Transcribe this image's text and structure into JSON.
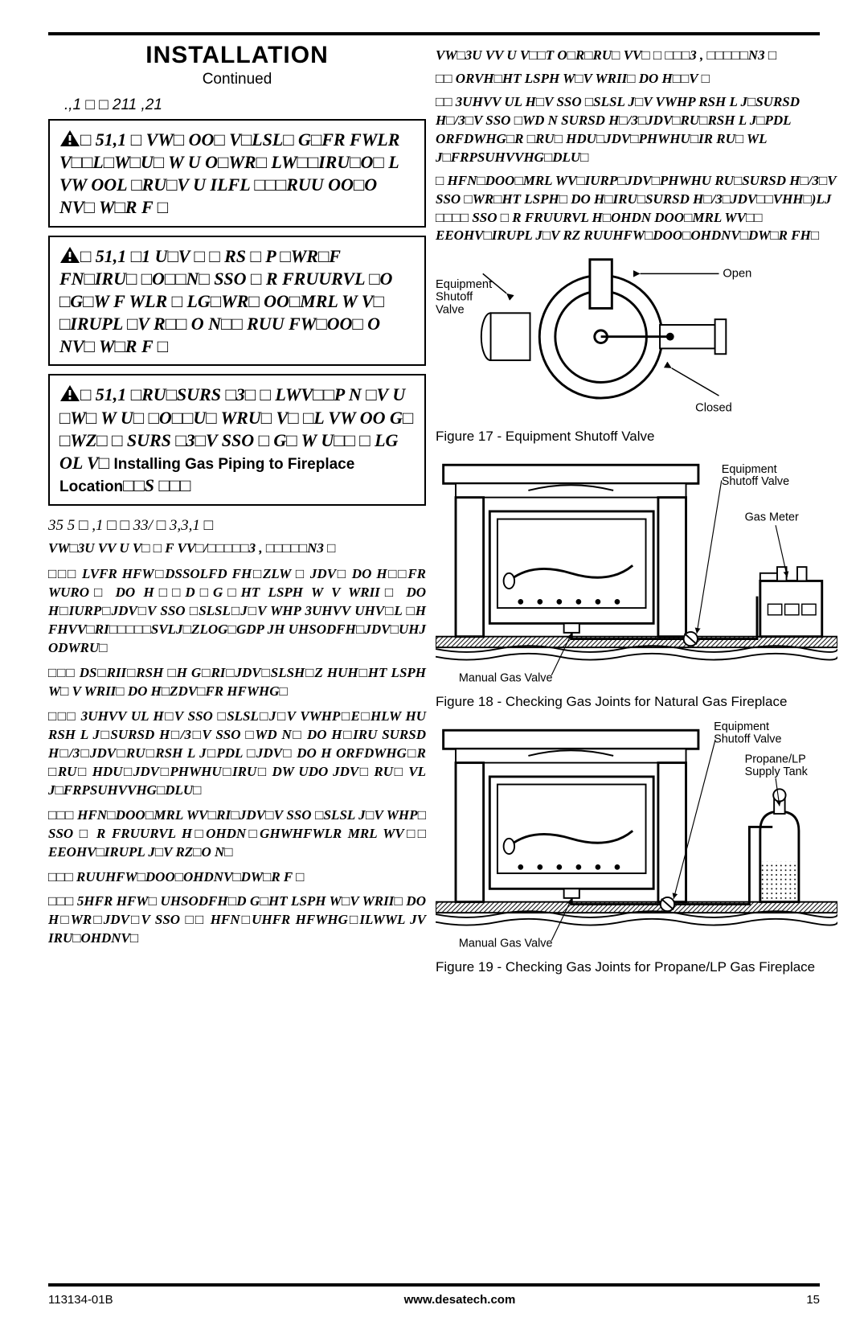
{
  "header": {
    "title": "INSTALLATION",
    "subtitle": "Continued",
    "section_head": ".,1 □  □ 211   ,21"
  },
  "warnings": {
    "w1": "□ 51,1 □ VW□ OO□ V□LSL□ G□FR     FWLR V□□L□W□U□ W  U   O□WR□   LW□□IRU□O□ L VW OOL □RU□V U ILFL □□□RUU OO□O  NV□ W□R F □",
    "w2": "□ 51,1 □1    U□V □   □ RS   □ P □WR□F   FN□IRU□ □O□□N□ SSO □ R FRUURVL □O □G□W F WLR □  LG□WR□ OO□MRL W V□ □IRUPL □V R□□ O  N□□ RUU FW□OO□ O  NV□ W□R F □",
    "w3_pre": "□ 51,1 □RU□SURS   □3□ □ LWV□□P N □V U □W□ W U□ □O□□U□ WRU□  V□   □L VW OO G□ □WZ□  □ SURS   □3□V SSO □  G□   W U□□ □  LG OL V□ ",
    "w3_inline_norm": "Installing Gas Piping to Fireplace Location",
    "w3_post": "□□S   □□□"
  },
  "left_sub": {
    "head": "35    5 □   ,1 □  □  33/ □ 3,3,1 □",
    "para1": "VW□3U VV U V□ □ F VV□/□□□□□3 , □□□□□N3 □",
    "items": [
      "□□□  LVFR   HFW□DSSOLFD FH□ZLW □ JDV□ DO H□□FR WURO□ DO H□□D□G□HT LSPH W V  WRII□ DO H□IURP□JDV□V SSO □SLSL□J□V WHP 3UHVV UHV□L □H FHVV□RI□□□□□SVLJ□ZLOG□GDP JH UHSODFH□JDV□UHJ ODWRU□",
      "□□□  DS□RII□RSH □H G□RI□JDV□SLSH□Z HUH□HT LSPH W□ V  WRII□ DO H□ZDV□FR  HFWHG□",
      "□□□ 3UHVV UL H□V SSO □SLSL□J□V VWHP□E□HLW HU RSH L J□SURSD H□/3□V SSO □WD N□ DO H□IRU SURSD H□/3□JDV□RU□RSH L J□PDL □JDV□ DO H ORFDWHG□R □RU□ HDU□JDV□PHWHU□IRU□ DW UDO JDV□ RU□ VL J□FRPSUHVVHG□DLU□",
      "□□□  HFN□DOO□MRL WV□RI□JDV□V SSO □SLSL J□V WHP□ SSO □ R FRUURVL H□OHDN□GHWHFWLR  MRL WV□□ EEOHV□IRUPL J□V RZ□O  N□",
      "□□□  RUUHFW□DOO□OHDNV□DW□R F □",
      "□□□ 5HFR  HFW□ UHSODFH□D G□HT LSPH W□V WRII□ DO H□WR□JDV□V SSO □□ HFN□UHFR  HFWHG□ILWWL JV IRU□OHDNV□"
    ]
  },
  "right": {
    "top_para": "VW□3U VV U V□□T    O□R□RU□ VV□   □ □□□3 ,  □□□□□N3 □",
    "items": [
      "□□  ORVH□HT LSPH W□V  WRII□ DO H□□V  □",
      "□□  3UHVV UL H□V SSO □SLSL J□V VWHP RSH L J□SURSD H□/3□V SSO □WD N SURSD H□/3□JDV□RU□RSH L J□PDL ORFDWHG□R □RU□ HDU□JDV□PHWHU□IR RU□ WL J□FRPSUHVVHG□DLU□",
      "□  HFN□DOO□MRL WV□IURP□JDV□PHWHU RU□SURSD H□/3□V SSO □WR□HT LSPH□ DO H□IRU□SURSD H□/3□JDV□□VHH□)LJ □□□□ SSO □ R FRUURVL H□OHDN DOO□MRL WV□□ EEOHV□IRUPL J□V RZ   RUUHFW□DOO□OHDNV□DW□R FH□"
    ],
    "fig17_caption": "Figure 17 - Equipment Shutoff Valve",
    "fig17_labels": {
      "open": "Open",
      "closed": "Closed",
      "esv": "Equipment\nShutoff\nValve"
    },
    "fig18_caption": "Figure 18 - Checking Gas Joints for Natural Gas Fireplace",
    "fig18_labels": {
      "esv": "Equipment\nShutoff Valve",
      "meter": "Gas Meter",
      "mgv": "Manual Gas Valve"
    },
    "fig19_caption": "Figure 19 - Checking Gas Joints for Propane/LP Gas Fireplace",
    "fig19_labels": {
      "esv": "Equipment\nShutoff Valve",
      "tank": "Propane/LP\nSupply Tank",
      "mgv": "Manual Gas Valve"
    }
  },
  "footer": {
    "doc_id": "113134-01B",
    "url": "www.desatech.com",
    "page": "15"
  },
  "colors": {
    "black": "#000000",
    "white": "#ffffff"
  }
}
